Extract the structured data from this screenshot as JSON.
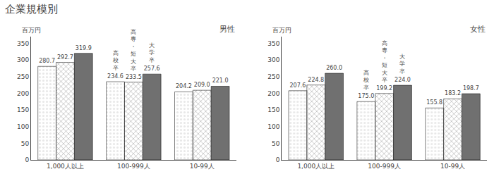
{
  "title": "企業規模別",
  "chart_data": [
    {
      "type": "bar",
      "title": "男性",
      "ylabel": "百万円",
      "categories": [
        "1,000人以上",
        "100-999人",
        "10-99人"
      ],
      "series": [
        {
          "name": "高\n校\n卒",
          "color": "#e8e8e8",
          "values": [
            280.7,
            234.6,
            204.2
          ],
          "value_labels": [
            "280.7",
            "234.6",
            "204.2"
          ]
        },
        {
          "name": "高\n専\n・\n短\n大\n卒",
          "color": "#c0c0c0",
          "values": [
            292.7,
            233.5,
            209.0
          ],
          "value_labels": [
            "292.7",
            "233.5",
            "209.0"
          ]
        },
        {
          "name": "大\n学\n卒",
          "color": "#707070",
          "values": [
            319.9,
            257.6,
            221.0
          ],
          "value_labels": [
            "319.9",
            "257.6",
            "221.0"
          ]
        }
      ],
      "ylim": [
        0,
        370
      ],
      "yticks": [
        0,
        50,
        100,
        150,
        200,
        250,
        300,
        350
      ],
      "data_labels": true,
      "grid": false
    },
    {
      "type": "bar",
      "title": "女性",
      "ylabel": "百万円",
      "categories": [
        "1,000人以上",
        "100-999人",
        "10-99人"
      ],
      "series": [
        {
          "name": "高\n校\n卒",
          "color": "#e8e8e8",
          "values": [
            207.6,
            175.0,
            155.8
          ],
          "value_labels": [
            "207.6",
            "175.0",
            "155.8"
          ]
        },
        {
          "name": "高\n専\n・\n短\n大\n卒",
          "color": "#c0c0c0",
          "values": [
            224.8,
            199.2,
            183.2
          ],
          "value_labels": [
            "224.8",
            "199.2",
            "183.2"
          ]
        },
        {
          "name": "大\n学\n卒",
          "color": "#707070",
          "values": [
            260.0,
            224.0,
            198.7
          ],
          "value_labels": [
            "260.0",
            "224.0",
            "198.7"
          ]
        }
      ],
      "ylim": [
        0,
        370
      ],
      "yticks": [
        0,
        50,
        100,
        150,
        200,
        250,
        300,
        350
      ],
      "data_labels": true,
      "grid": false
    }
  ]
}
